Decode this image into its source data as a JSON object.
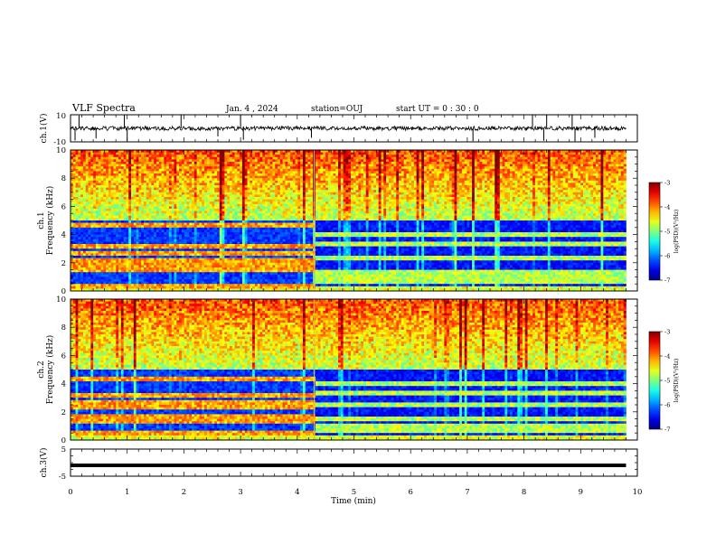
{
  "header": {
    "title": "VLF Spectra",
    "date": "Jan. 4 , 2024",
    "station": "station=OUJ",
    "start": "start UT =  0 : 30 : 0"
  },
  "chart_data": [
    {
      "type": "line",
      "name": "ch1-waveform",
      "ylabel": "ch.1(V)",
      "ylim": [
        -10,
        10
      ],
      "yticks": [
        "10",
        "-10"
      ],
      "x_unit": "min",
      "xlim": [
        0,
        10
      ],
      "data_extent": [
        0,
        9.8
      ],
      "baseline": 0,
      "typical_amplitude": 1.5,
      "spikes": [
        {
          "x": 0.08,
          "y": -9.0
        },
        {
          "x": 0.15,
          "y": 9.5
        },
        {
          "x": 0.45,
          "y": -7.5
        },
        {
          "x": 0.95,
          "y": 9.8
        },
        {
          "x": 1.0,
          "y": -9.5
        },
        {
          "x": 1.95,
          "y": 9.8
        },
        {
          "x": 2.6,
          "y": -6.0
        },
        {
          "x": 3.0,
          "y": 9.6
        },
        {
          "x": 3.05,
          "y": -8.5
        },
        {
          "x": 4.25,
          "y": -7.0
        },
        {
          "x": 7.1,
          "y": -9.5
        },
        {
          "x": 8.15,
          "y": 9.8
        },
        {
          "x": 8.35,
          "y": -9.2
        },
        {
          "x": 8.4,
          "y": 9.6
        },
        {
          "x": 8.85,
          "y": 9.7
        },
        {
          "x": 8.9,
          "y": -9.6
        },
        {
          "x": 9.25,
          "y": -7.0
        }
      ]
    },
    {
      "type": "heatmap",
      "name": "ch1-spectrogram",
      "ylabel": "ch.1 Frequency (kHz)",
      "ylim": [
        0,
        10
      ],
      "yticks": [
        "0",
        "2",
        "4",
        "6",
        "8",
        "10"
      ],
      "xlim": [
        0,
        10
      ],
      "data_extent": [
        0,
        9.8
      ],
      "transition_min": 4.3,
      "colorbar": {
        "label": "log(PSD)(V²/Hz)",
        "range": [
          -7,
          -3
        ],
        "ticks": [
          "-3",
          "-4",
          "-5",
          "-6",
          "-7"
        ]
      },
      "bands_before_khz": [
        0.4,
        1.5,
        1.8,
        2.1,
        2.6,
        3.2,
        4.7
      ],
      "bands_after_khz": [
        0.6,
        1.0,
        1.4,
        2.4,
        3.4,
        4.0
      ]
    },
    {
      "type": "heatmap",
      "name": "ch2-spectrogram",
      "ylabel": "ch.2 Frequency (kHz)",
      "ylim": [
        0,
        10
      ],
      "yticks": [
        "0",
        "2",
        "4",
        "6",
        "8",
        "10"
      ],
      "xlim": [
        0,
        10
      ],
      "data_extent": [
        0,
        9.8
      ],
      "transition_min": 4.3,
      "colorbar": {
        "label": "log(PSD)(V²/Hz)",
        "range": [
          -7,
          -3
        ],
        "ticks": [
          "-3",
          "-4",
          "-5",
          "-6",
          "-7"
        ]
      },
      "bands_before_khz": [
        0.5,
        1.3,
        1.7,
        2.3,
        2.6,
        3.2,
        4.3
      ],
      "bands_after_khz": [
        0.6,
        1.0,
        1.5,
        2.5,
        3.3,
        4.0
      ]
    },
    {
      "type": "line",
      "name": "ch3-waveform",
      "ylabel": "ch.3(V)",
      "ylim": [
        -5,
        5
      ],
      "yticks": [
        "5",
        "-5"
      ],
      "xlim": [
        0,
        10
      ],
      "data_extent": [
        0,
        9.8
      ],
      "baseline": -1.0
    }
  ],
  "xaxis": {
    "label": "Time (min)",
    "ticks": [
      "0",
      "1",
      "2",
      "3",
      "4",
      "5",
      "6",
      "7",
      "8",
      "9",
      "10"
    ]
  }
}
